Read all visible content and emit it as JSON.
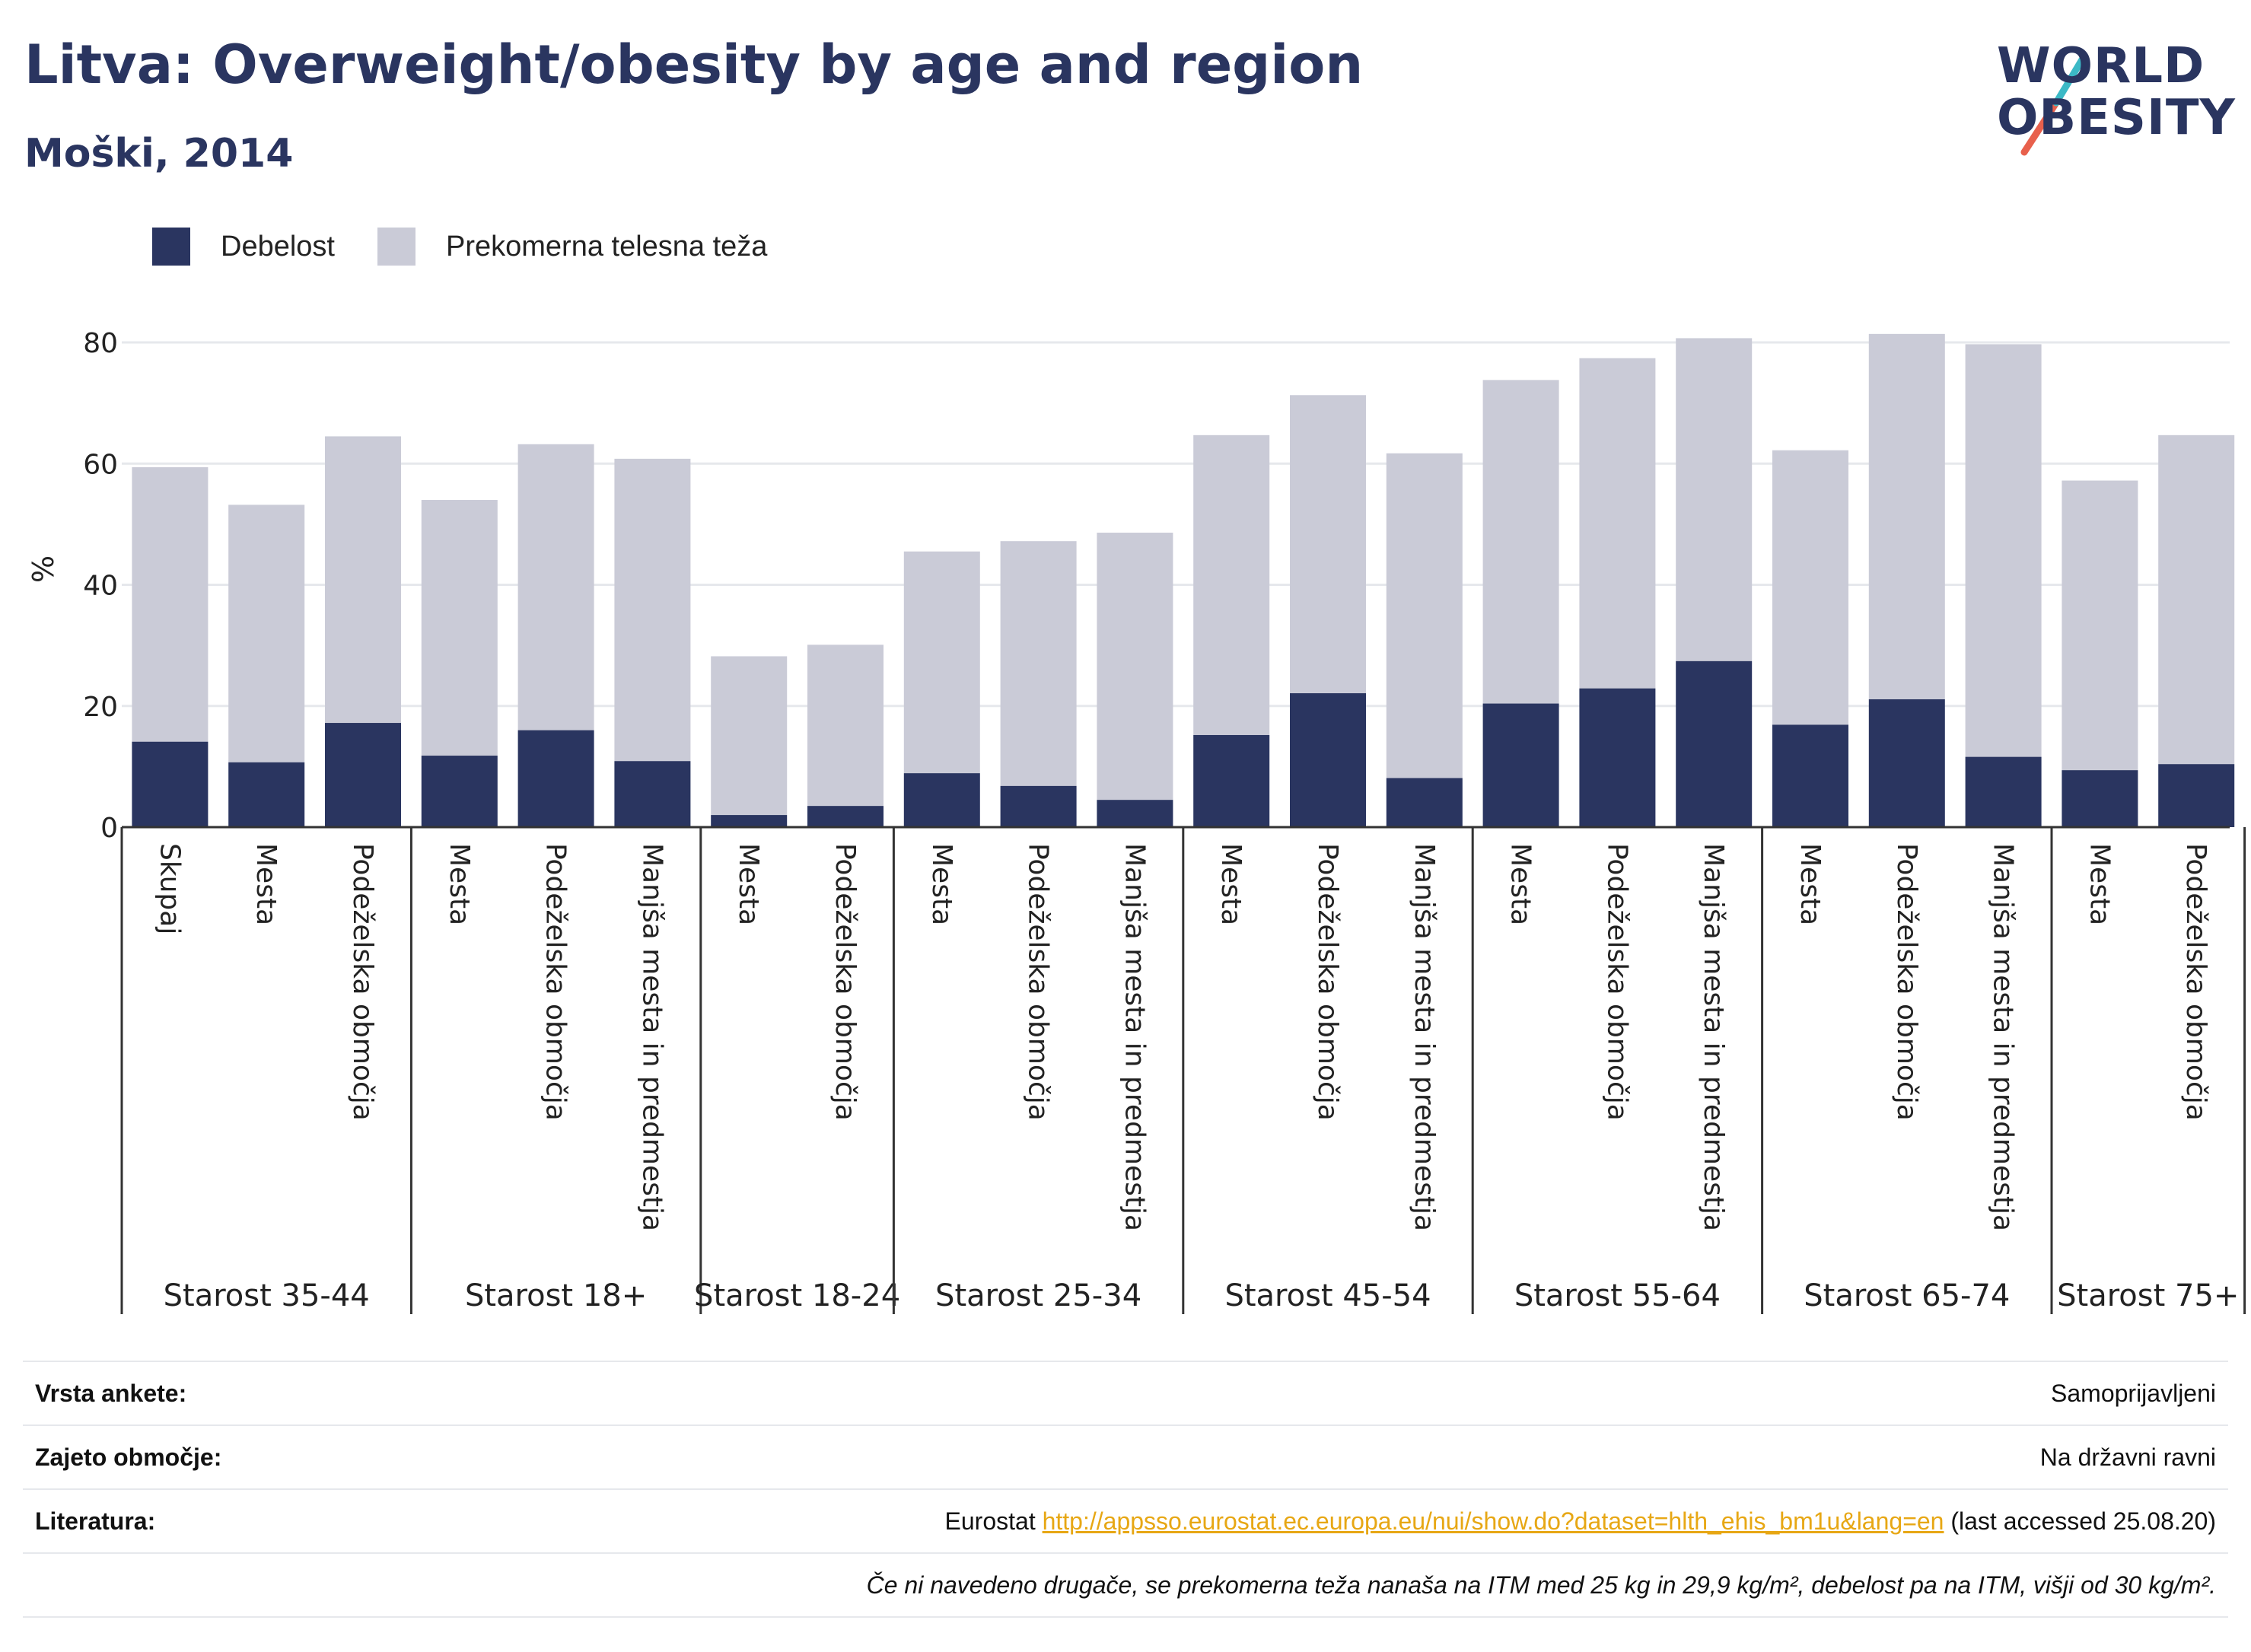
{
  "header": {
    "title": "Litva: Overweight/obesity by age and region",
    "subtitle": "Moški, 2014"
  },
  "logo": {
    "line1": "WORLD",
    "line2": "OBESITY"
  },
  "colors": {
    "obesity": "#2a3560",
    "overweight": "#cacbd7",
    "accent": "#2a3560",
    "link": "#e7a714"
  },
  "legend": [
    {
      "label": "Debelost",
      "color": "#2a3560"
    },
    {
      "label": "Prekomerna telesna teža",
      "color": "#cacbd7"
    }
  ],
  "chart_data": {
    "type": "bar",
    "stacked": true,
    "ylabel": "%",
    "ylim": [
      0,
      80
    ],
    "yticks": [
      0,
      20,
      40,
      60,
      80
    ],
    "grid": true,
    "legend_position": "top-left",
    "groups": [
      {
        "label": "Starost 35-44",
        "categories": [
          "Skupaj",
          "Mesta",
          "Podeželska območja"
        ]
      },
      {
        "label": "Starost 18+",
        "categories": [
          "Mesta",
          "Podeželska območja",
          "Manjša mesta in predmestja"
        ]
      },
      {
        "label": "Starost 18-24",
        "categories": [
          "Mesta",
          "Podeželska območja"
        ]
      },
      {
        "label": "Starost 25-34",
        "categories": [
          "Mesta",
          "Podeželska območja",
          "Manjša mesta in predmestja"
        ]
      },
      {
        "label": "Starost 45-54",
        "categories": [
          "Mesta",
          "Podeželska območja",
          "Manjša mesta in predmestja"
        ]
      },
      {
        "label": "Starost 55-64",
        "categories": [
          "Mesta",
          "Podeželska območja",
          "Manjša mesta in predmestja"
        ]
      },
      {
        "label": "Starost 65-74",
        "categories": [
          "Mesta",
          "Podeželska območja",
          "Manjša mesta in predmestja"
        ]
      },
      {
        "label": "Starost 75+",
        "categories": [
          "Mesta",
          "Podeželska območja"
        ]
      }
    ],
    "series": [
      {
        "name": "Debelost",
        "values": [
          14.1,
          10.7,
          17.2,
          11.8,
          16.0,
          10.9,
          2.0,
          3.5,
          8.9,
          6.8,
          4.5,
          15.2,
          22.1,
          8.1,
          20.4,
          22.9,
          27.4,
          16.9,
          21.1,
          11.6,
          9.4,
          10.4
        ]
      },
      {
        "name": "Prekomerna telesna teža",
        "values": [
          45.3,
          42.5,
          47.3,
          42.2,
          47.2,
          49.9,
          26.2,
          26.6,
          36.6,
          40.4,
          44.1,
          49.5,
          49.2,
          53.6,
          53.4,
          54.5,
          53.3,
          45.3,
          60.3,
          68.1,
          47.8,
          54.3
        ]
      }
    ]
  },
  "meta": [
    {
      "key": "Vrsta ankete:",
      "value": "Samoprijavljeni"
    },
    {
      "key": "Zajeto območje:",
      "value": "Na državni ravni"
    },
    {
      "key": "Literatura:",
      "prefix": "Eurostat ",
      "link": "http://appsso.eurostat.ec.europa.eu/nui/show.do?dataset=hlth_ehis_bm1u&lang=en",
      "suffix": " (last accessed 25.08.20)"
    }
  ],
  "note": "Če ni navedeno drugače, se prekomerna teža nanaša na ITM med 25 kg in 29,9 kg/m², debelost pa na ITM, višji od 30 kg/m²."
}
